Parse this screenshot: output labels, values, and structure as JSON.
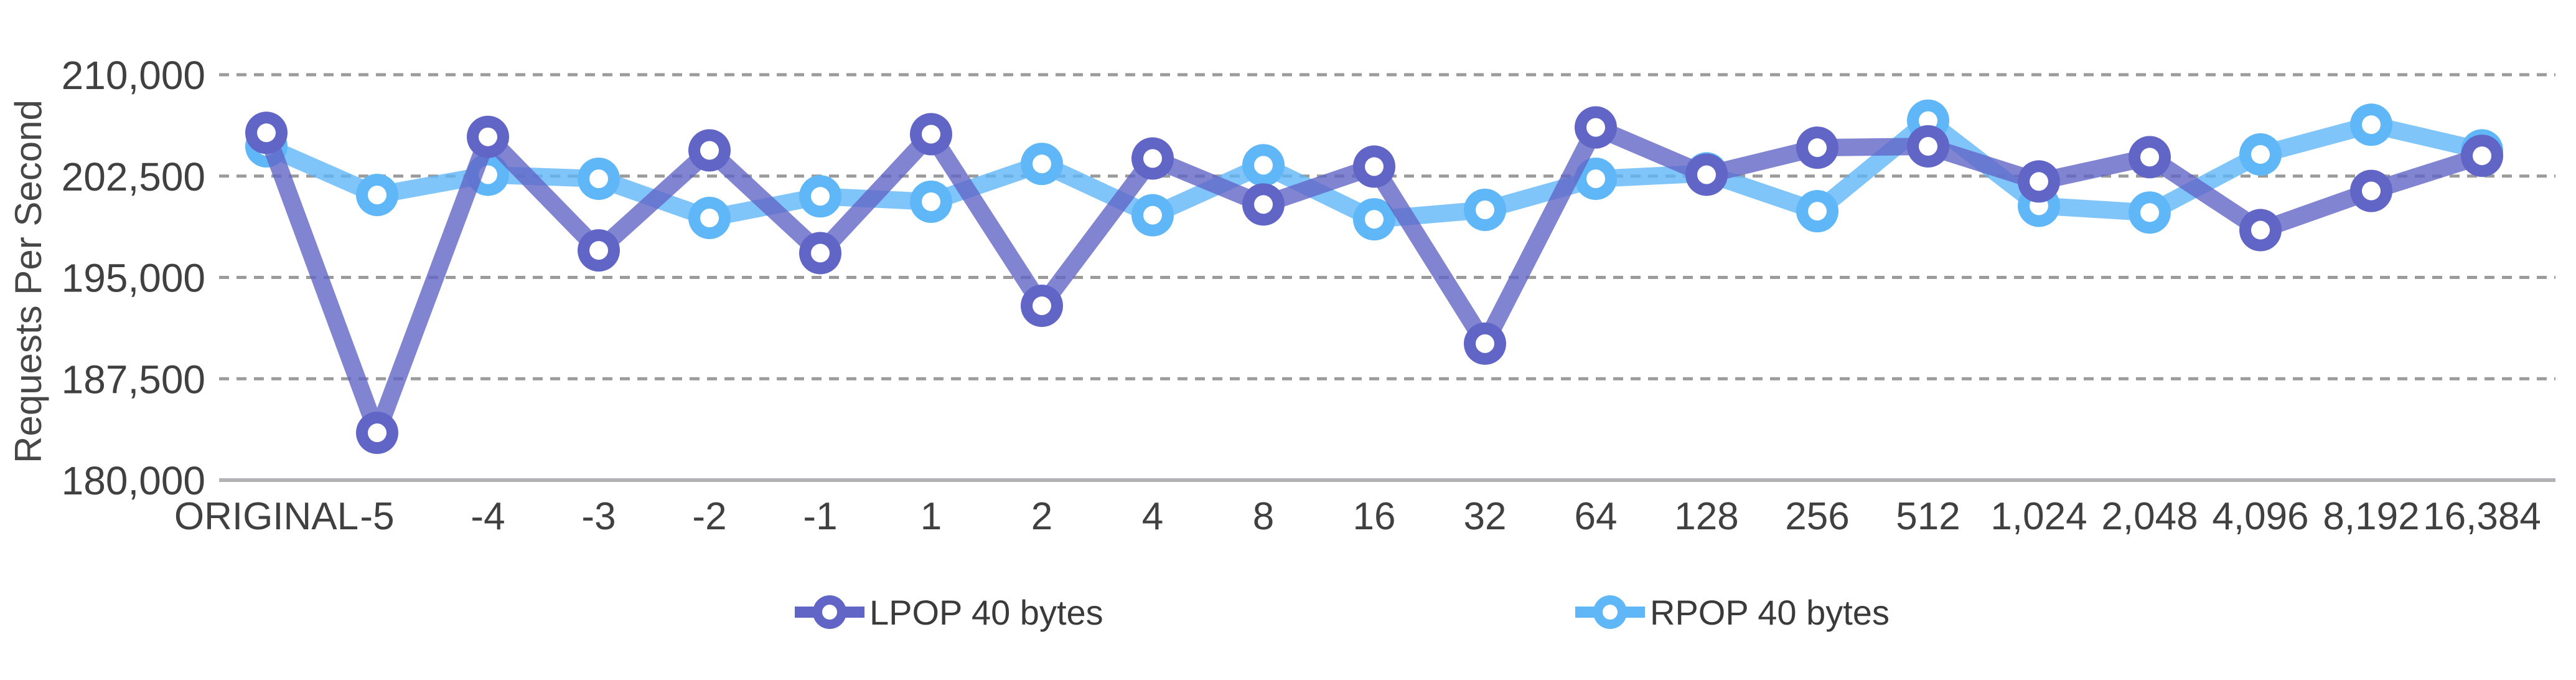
{
  "chart_data": {
    "type": "line",
    "title": "",
    "xlabel": "",
    "ylabel": "Requests Per Second",
    "grid": "horizontal-dashed",
    "legend_position": "bottom",
    "ylim": [
      180000,
      210000
    ],
    "y_ticks": [
      {
        "label": "210,000",
        "value": 210000
      },
      {
        "label": "202,500",
        "value": 202500
      },
      {
        "label": "195,000",
        "value": 195000
      },
      {
        "label": "187,500",
        "value": 187500
      },
      {
        "label": "180,000",
        "value": 180000
      }
    ],
    "categories": [
      "ORIGINAL",
      "-5",
      "-4",
      "-3",
      "-2",
      "-1",
      "1",
      "2",
      "4",
      "8",
      "16",
      "32",
      "64",
      "128",
      "256",
      "512",
      "1,024",
      "2,048",
      "4,096",
      "8,192",
      "16,384"
    ],
    "series": [
      {
        "name": "LPOP 40 bytes",
        "key": "lpop",
        "color": "#6165C6",
        "values": [
          205700,
          183500,
          205400,
          197000,
          204400,
          196800,
          205600,
          192900,
          203800,
          200400,
          203200,
          190100,
          206100,
          202600,
          204600,
          204700,
          202100,
          203900,
          198500,
          201400,
          204000
        ]
      },
      {
        "name": "RPOP 40 bytes",
        "key": "rpop",
        "color": "#5FB7F7",
        "values": [
          204700,
          201100,
          202600,
          202300,
          199400,
          201000,
          200600,
          203400,
          199600,
          203300,
          199300,
          200000,
          202300,
          202700,
          199900,
          206600,
          200300,
          199800,
          204100,
          206300,
          204400
        ]
      }
    ],
    "grid_color": "#9b9b9b",
    "axis_line_color": "#b1b1b6"
  }
}
